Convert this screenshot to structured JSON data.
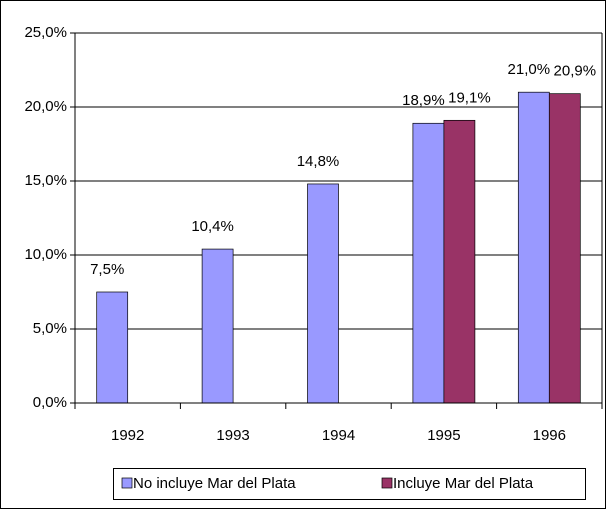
{
  "chart_data": {
    "type": "bar",
    "categories": [
      "1992",
      "1993",
      "1994",
      "1995",
      "1996"
    ],
    "series": [
      {
        "name": "No incluye Mar del Plata",
        "color": "#9999ff",
        "values": [
          7.5,
          10.4,
          14.8,
          18.9,
          21.0
        ],
        "value_labels": [
          "7,5%",
          "10,4%",
          "14,8%",
          "18,9%",
          "21,0%"
        ]
      },
      {
        "name": "Incluye Mar del Plata",
        "color": "#993366",
        "values": [
          null,
          null,
          null,
          19.1,
          20.9
        ],
        "value_labels": [
          null,
          null,
          null,
          "19,1%",
          "20,9%"
        ]
      }
    ],
    "ylim": [
      0,
      25
    ],
    "yticks": [
      {
        "value": 0,
        "label": "0,0%"
      },
      {
        "value": 5,
        "label": "5,0%"
      },
      {
        "value": 10,
        "label": "10,0%"
      },
      {
        "value": 15,
        "label": "15,0%"
      },
      {
        "value": 20,
        "label": "20,0%"
      },
      {
        "value": 25,
        "label": "25,0%"
      }
    ],
    "grid": true,
    "legend": "bottom"
  }
}
